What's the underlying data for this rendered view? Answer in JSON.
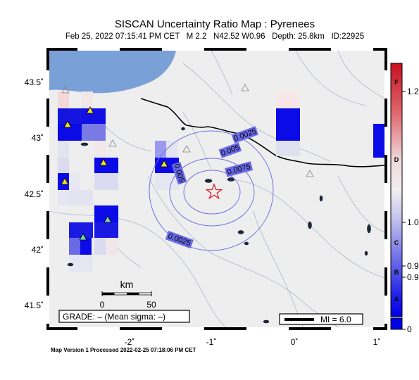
{
  "title": "SISCAN Uncertainty Ratio Map : Pyrenees",
  "subtitle": "Feb 25, 2022 07:15:41 PM CET   M 2.2   N42.52 W0.96   Depth: 25.8km   ID:22925",
  "footer": "Map Version 1 Processed 2022-02-25 07:18:06 PM CET",
  "axes": {
    "lat_labels": [
      "43.5˚",
      "43˚",
      "42.5˚",
      "42˚",
      "41.5˚"
    ],
    "lon_labels": [
      "-2˚",
      "-1˚",
      "0˚",
      "1˚"
    ]
  },
  "contours": [
    "0.0025",
    "0.005",
    "0.0075",
    "0.005",
    "0.0025"
  ],
  "scale_bar": {
    "unit": "km",
    "tick_start": "0",
    "tick_end": "50"
  },
  "grade_box": "GRADE: – (Mean sigma: –)",
  "mi_legend": "MI = 6.0",
  "colorbar": {
    "grades": [
      "F",
      "D",
      "C",
      "B",
      "A"
    ],
    "values": [
      "1.2",
      "1.0",
      "0.9",
      "0.9",
      "0"
    ]
  },
  "colors": {
    "sea": "#7aa0d8",
    "land": "#eeeeee",
    "star": "#e0202a",
    "contour": "#6f6fe8",
    "station_high": "#f0e020",
    "station_low": "#6ed6b0"
  }
}
